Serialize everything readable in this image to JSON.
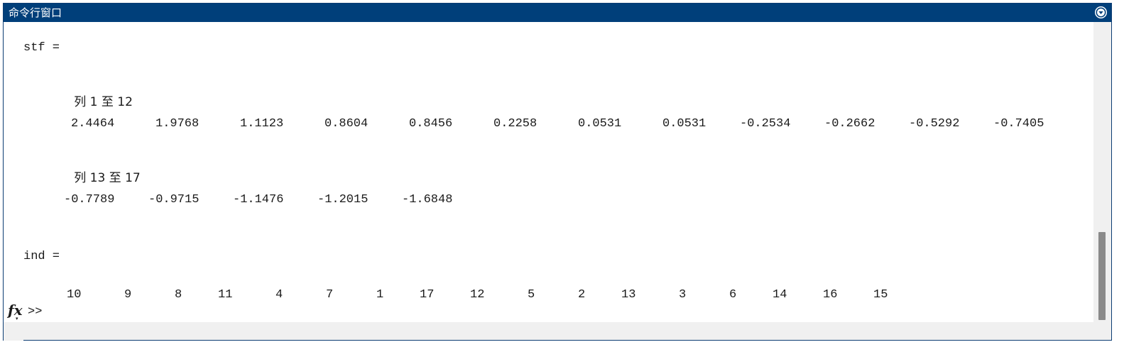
{
  "window": {
    "title": "命令行窗口",
    "menu_icon": "circle-chevron-down-icon"
  },
  "output": {
    "stf_header": "stf =",
    "stf_block1_label": "列 1 至 12",
    "stf_block1_values": [
      "2.4464",
      "1.9768",
      "1.1123",
      "0.8604",
      "0.8456",
      "0.2258",
      "0.0531",
      "0.0531",
      "-0.2534",
      "-0.2662",
      "-0.5292",
      "-0.7405"
    ],
    "stf_block2_label": "列 13 至 17",
    "stf_block2_values": [
      "-0.7789",
      "-0.9715",
      "-1.1476",
      "-1.2015",
      "-1.6848"
    ],
    "ind_header": "ind =",
    "ind_values": [
      "10",
      "9",
      "8",
      "11",
      "4",
      "7",
      "1",
      "17",
      "12",
      "5",
      "2",
      "13",
      "3",
      "6",
      "14",
      "16",
      "15"
    ]
  },
  "command_line": {
    "fx_label": "fx",
    "prompt": ">>",
    "value": ""
  },
  "colors": {
    "titlebar": "#003f7a",
    "text": "#1a1a1a",
    "scroll_thumb": "#8a8a8a"
  }
}
